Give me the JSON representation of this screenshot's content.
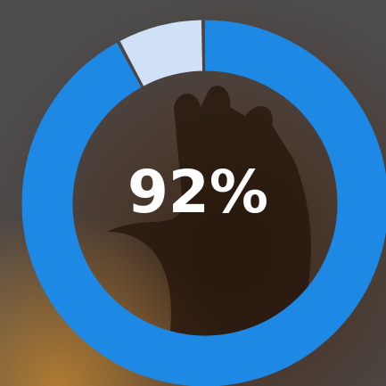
{
  "chart_data": {
    "type": "donut",
    "values": [
      92
    ],
    "value_labels": [
      "92%"
    ],
    "ylim": [
      0,
      100
    ],
    "color": "#1e88e5",
    "track_color": "#cfe0f7"
  }
}
